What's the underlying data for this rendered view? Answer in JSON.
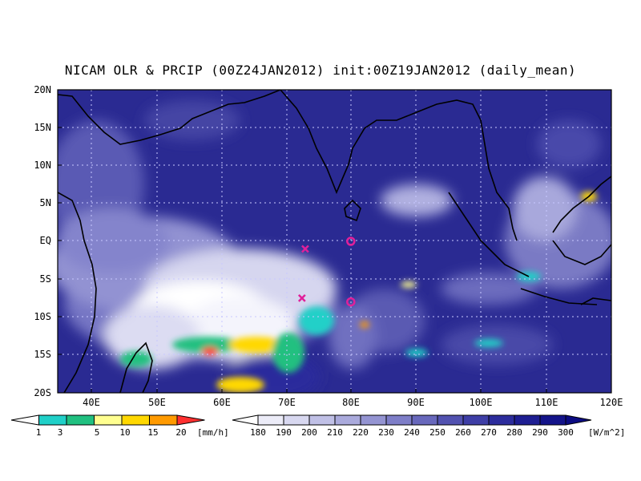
{
  "title": "NICAM OLR & PRCIP (00Z24JAN2012) init:00Z19JAN2012 (daily_mean)",
  "lat_labels": [
    "20N",
    "15N",
    "10N",
    "5N",
    "EQ",
    "5S",
    "10S",
    "15S",
    "20S"
  ],
  "lat_values": [
    20,
    15,
    10,
    5,
    0,
    -5,
    -10,
    -15,
    -20
  ],
  "lon_labels": [
    "40E",
    "50E",
    "60E",
    "70E",
    "80E",
    "90E",
    "100E",
    "110E",
    "120E"
  ],
  "lon_values": [
    40,
    50,
    60,
    70,
    80,
    90,
    100,
    110,
    120
  ],
  "precip_colorbar": {
    "labels": [
      "1",
      "3",
      "5",
      "10",
      "15",
      "20"
    ],
    "unit": "[mm/h]",
    "colors": [
      "#ffffff",
      "#20d0c8",
      "#20c080",
      "#ffff90",
      "#ffd800",
      "#ff9a00",
      "#ff3030"
    ]
  },
  "olr_colorbar": {
    "labels": [
      "180",
      "190",
      "200",
      "210",
      "220",
      "230",
      "240",
      "250",
      "260",
      "270",
      "280",
      "290",
      "300"
    ],
    "unit": "[W/m^2]",
    "colors": [
      "#ffffff",
      "#ececf8",
      "#d8d8f0",
      "#c0c0e6",
      "#aaaadc",
      "#9494d2",
      "#7e7ec8",
      "#6868bc",
      "#5252b0",
      "#3e3ea6",
      "#2c2c9c",
      "#1e1e92",
      "#14148a",
      "#0c0c82"
    ]
  },
  "markers": [
    {
      "type": "x",
      "lon": 73,
      "lat": -1
    },
    {
      "type": "x",
      "lon": 72.5,
      "lat": -7.5
    },
    {
      "type": "o",
      "lon": 80,
      "lat": 0
    },
    {
      "type": "o",
      "lon": 80,
      "lat": -8
    }
  ],
  "colors": {
    "ocean": "#2a2a92",
    "marker": "#e0209a",
    "coast": "#000000"
  }
}
